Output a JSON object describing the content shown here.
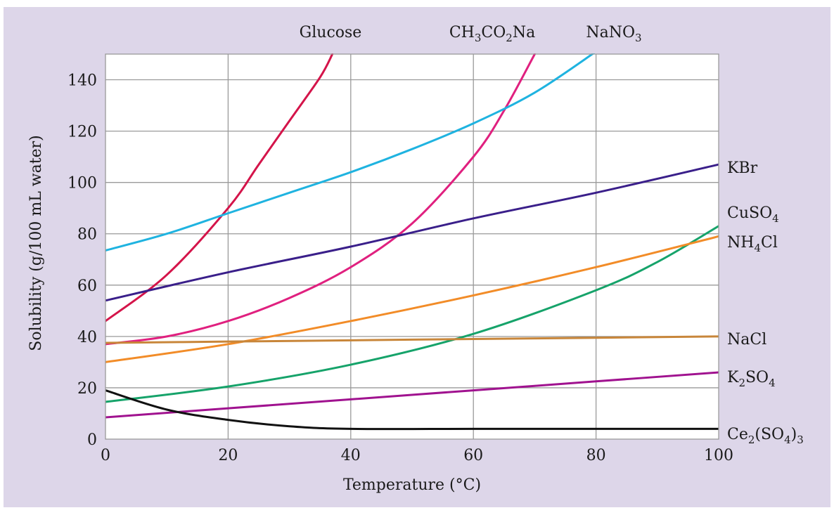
{
  "chart_data": {
    "type": "line",
    "title": "",
    "xlabel": "Temperature (°C)",
    "ylabel": "Solubility (g/100 mL water)",
    "xlim": [
      0,
      100
    ],
    "ylim": [
      0,
      150
    ],
    "x_ticks": [
      0,
      20,
      40,
      60,
      80,
      100
    ],
    "y_ticks": [
      0,
      20,
      40,
      60,
      80,
      100,
      120,
      140
    ],
    "grid": true,
    "colors": {
      "background": "#ddd6e9",
      "plot_area": "#ffffff",
      "grid": "#9a9a9a"
    },
    "series": [
      {
        "name": "Glucose",
        "label_parts": [
          {
            "t": "Glucose"
          }
        ],
        "label_position": "top",
        "color": "#d4144a",
        "points": [
          [
            0,
            46
          ],
          [
            10,
            64
          ],
          [
            20,
            90
          ],
          [
            25,
            107
          ],
          [
            30,
            124
          ],
          [
            35,
            141
          ],
          [
            37,
            150
          ]
        ]
      },
      {
        "name": "CH3CO2Na",
        "label_parts": [
          {
            "t": "CH"
          },
          {
            "t": "3",
            "sub": true
          },
          {
            "t": "CO"
          },
          {
            "t": "2",
            "sub": true
          },
          {
            "t": "Na"
          }
        ],
        "label_position": "top",
        "color": "#e0207f",
        "points": [
          [
            0,
            37
          ],
          [
            10,
            40
          ],
          [
            20,
            46
          ],
          [
            30,
            55
          ],
          [
            40,
            67
          ],
          [
            50,
            84
          ],
          [
            60,
            110
          ],
          [
            65,
            128
          ],
          [
            70,
            150
          ]
        ]
      },
      {
        "name": "NaNO3",
        "label_parts": [
          {
            "t": "NaNO"
          },
          {
            "t": "3",
            "sub": true
          }
        ],
        "label_position": "top",
        "color": "#1fb3e0",
        "points": [
          [
            0,
            73.5
          ],
          [
            10,
            80
          ],
          [
            20,
            88
          ],
          [
            30,
            96
          ],
          [
            40,
            104
          ],
          [
            50,
            113
          ],
          [
            60,
            123
          ],
          [
            70,
            135
          ],
          [
            80,
            151
          ]
        ]
      },
      {
        "name": "KBr",
        "label_parts": [
          {
            "t": "KBr"
          }
        ],
        "label_position": "right",
        "color": "#3a1f8a",
        "points": [
          [
            0,
            54
          ],
          [
            20,
            65
          ],
          [
            40,
            75
          ],
          [
            60,
            86
          ],
          [
            80,
            96
          ],
          [
            100,
            107
          ]
        ]
      },
      {
        "name": "CuSO4",
        "label_parts": [
          {
            "t": "CuSO"
          },
          {
            "t": "4",
            "sub": true
          }
        ],
        "label_position": "right",
        "color": "#16a36a",
        "points": [
          [
            0,
            14.5
          ],
          [
            20,
            20.5
          ],
          [
            40,
            29
          ],
          [
            60,
            41
          ],
          [
            80,
            58
          ],
          [
            90,
            69
          ],
          [
            100,
            83
          ]
        ]
      },
      {
        "name": "NH4Cl",
        "label_parts": [
          {
            "t": "NH"
          },
          {
            "t": "4",
            "sub": true
          },
          {
            "t": "Cl"
          }
        ],
        "label_position": "right",
        "color": "#f28c28",
        "points": [
          [
            0,
            30
          ],
          [
            20,
            37
          ],
          [
            40,
            46
          ],
          [
            60,
            56
          ],
          [
            80,
            67
          ],
          [
            100,
            79
          ]
        ]
      },
      {
        "name": "NaCl",
        "label_parts": [
          {
            "t": "NaCl"
          }
        ],
        "label_position": "right",
        "color": "#c8863a",
        "points": [
          [
            0,
            37.5
          ],
          [
            20,
            38
          ],
          [
            40,
            38.5
          ],
          [
            60,
            39
          ],
          [
            80,
            39.5
          ],
          [
            100,
            40
          ]
        ]
      },
      {
        "name": "K2SO4",
        "label_parts": [
          {
            "t": "K"
          },
          {
            "t": "2",
            "sub": true
          },
          {
            "t": "SO"
          },
          {
            "t": "4",
            "sub": true
          }
        ],
        "label_position": "right",
        "color": "#a0128f",
        "points": [
          [
            0,
            8.5
          ],
          [
            20,
            12
          ],
          [
            40,
            15.5
          ],
          [
            60,
            19
          ],
          [
            80,
            22.5
          ],
          [
            100,
            26
          ]
        ]
      },
      {
        "name": "Ce2(SO4)3",
        "label_parts": [
          {
            "t": "Ce"
          },
          {
            "t": "2",
            "sub": true
          },
          {
            "t": "(SO"
          },
          {
            "t": "4",
            "sub": true
          },
          {
            "t": ")"
          },
          {
            "t": "3",
            "sub": true
          }
        ],
        "label_position": "right",
        "color": "#111111",
        "points": [
          [
            0,
            19
          ],
          [
            10,
            11.5
          ],
          [
            20,
            7.5
          ],
          [
            30,
            5
          ],
          [
            40,
            4
          ],
          [
            60,
            4
          ],
          [
            80,
            4
          ],
          [
            100,
            4
          ]
        ]
      }
    ]
  }
}
